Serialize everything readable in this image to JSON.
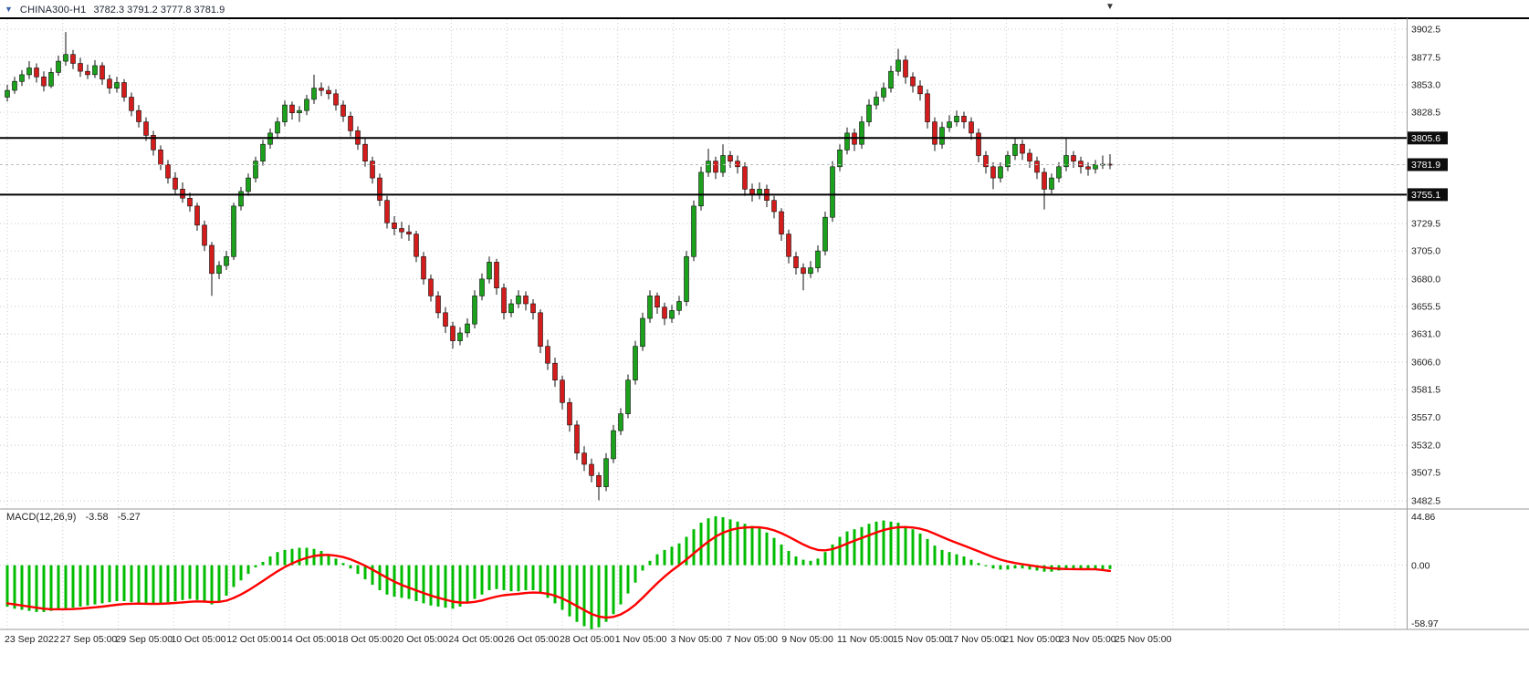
{
  "header": {
    "symbol": "CHINA300-H1",
    "ohlc": "3782.3 3791.2 3777.8 3781.9"
  },
  "icons": {
    "one_click_arrow": "▼",
    "shift_marker": "▼"
  },
  "colors": {
    "candle_up": "#1ba11b",
    "candle_down": "#d41c1c",
    "candle_outline": "#101010",
    "wick": "#101010",
    "macd_histogram": "#00bc00",
    "macd_signal": "#ff0000",
    "level_line": "#000000",
    "current_price_line": "#bdbdbd",
    "grid": "#c9c9c9",
    "frame": "#9b9b9b",
    "top_border": "#000000",
    "tag_bg": "#0d0d0d",
    "tag_text": "#ffffff",
    "axis_text": "#1a1a1a"
  },
  "chart_data": [
    {
      "type": "candlestick",
      "title": "CHINA300-H1",
      "x_tick_labels": [
        "23 Sep 2022",
        "27 Sep 05:00",
        "29 Sep 05:00",
        "10 Oct 05:00",
        "12 Oct 05:00",
        "14 Oct 05:00",
        "18 Oct 05:00",
        "20 Oct 05:00",
        "24 Oct 05:00",
        "26 Oct 05:00",
        "28 Oct 05:00",
        "1 Nov 05:00",
        "3 Nov 05:00",
        "7 Nov 05:00",
        "9 Nov 05:00",
        "11 Nov 05:00",
        "15 Nov 05:00",
        "17 Nov 05:00",
        "21 Nov 05:00",
        "23 Nov 05:00",
        "25 Nov 05:00"
      ],
      "ylim": [
        3482.5,
        3902.5
      ],
      "y_tick_labels": [
        "3902.5",
        "3877.5",
        "3853.0",
        "3828.5",
        "3729.5",
        "3705.0",
        "3680.0",
        "3655.5",
        "3631.0",
        "3606.0",
        "3581.5",
        "3557.0",
        "3532.0",
        "3507.5",
        "3482.5"
      ],
      "y_tick_values": [
        3902.5,
        3877.5,
        3853.0,
        3828.5,
        3729.5,
        3705.0,
        3680.0,
        3655.5,
        3631.0,
        3606.0,
        3581.5,
        3557.0,
        3532.0,
        3507.5,
        3482.5
      ],
      "hlines": [
        3805.6,
        3755.1
      ],
      "last_price": 3781.9,
      "price_tags": [
        {
          "label": "3805.6",
          "price": 3805.6
        },
        {
          "label": "3781.9",
          "price": 3781.9
        },
        {
          "label": "3755.1",
          "price": 3755.1
        }
      ],
      "grid": true,
      "candles": [
        [
          3842,
          3853,
          3838,
          3848
        ],
        [
          3848,
          3860,
          3845,
          3856
        ],
        [
          3856,
          3866,
          3852,
          3862
        ],
        [
          3862,
          3874,
          3858,
          3868
        ],
        [
          3868,
          3872,
          3855,
          3860
        ],
        [
          3860,
          3865,
          3847,
          3852
        ],
        [
          3852,
          3868,
          3850,
          3864
        ],
        [
          3864,
          3879,
          3861,
          3874
        ],
        [
          3874,
          3900,
          3870,
          3880
        ],
        [
          3880,
          3884,
          3867,
          3872
        ],
        [
          3872,
          3877,
          3860,
          3865
        ],
        [
          3865,
          3871,
          3858,
          3862
        ],
        [
          3862,
          3875,
          3859,
          3870
        ],
        [
          3870,
          3873,
          3853,
          3858
        ],
        [
          3858,
          3862,
          3845,
          3850
        ],
        [
          3850,
          3860,
          3846,
          3855
        ],
        [
          3855,
          3858,
          3838,
          3842
        ],
        [
          3842,
          3846,
          3825,
          3830
        ],
        [
          3830,
          3835,
          3815,
          3820
        ],
        [
          3820,
          3824,
          3803,
          3808
        ],
        [
          3808,
          3812,
          3790,
          3795
        ],
        [
          3795,
          3799,
          3777,
          3782
        ],
        [
          3782,
          3786,
          3765,
          3770
        ],
        [
          3770,
          3775,
          3755,
          3760
        ],
        [
          3760,
          3766,
          3748,
          3752
        ],
        [
          3752,
          3757,
          3740,
          3745
        ],
        [
          3745,
          3748,
          3723,
          3728
        ],
        [
          3728,
          3732,
          3705,
          3710
        ],
        [
          3710,
          3713,
          3665,
          3685
        ],
        [
          3685,
          3696,
          3680,
          3692
        ],
        [
          3692,
          3705,
          3688,
          3700
        ],
        [
          3700,
          3748,
          3697,
          3745
        ],
        [
          3745,
          3762,
          3741,
          3758
        ],
        [
          3758,
          3774,
          3754,
          3770
        ],
        [
          3770,
          3789,
          3766,
          3785
        ],
        [
          3785,
          3804,
          3781,
          3800
        ],
        [
          3800,
          3814,
          3796,
          3810
        ],
        [
          3810,
          3824,
          3806,
          3820
        ],
        [
          3820,
          3839,
          3816,
          3835
        ],
        [
          3835,
          3838,
          3822,
          3828
        ],
        [
          3828,
          3834,
          3820,
          3830
        ],
        [
          3830,
          3844,
          3826,
          3840
        ],
        [
          3840,
          3862,
          3836,
          3850
        ],
        [
          3850,
          3855,
          3843,
          3848
        ],
        [
          3848,
          3852,
          3840,
          3845
        ],
        [
          3845,
          3849,
          3830,
          3835
        ],
        [
          3835,
          3839,
          3820,
          3825
        ],
        [
          3825,
          3829,
          3807,
          3812
        ],
        [
          3812,
          3816,
          3795,
          3800
        ],
        [
          3800,
          3805,
          3780,
          3785
        ],
        [
          3785,
          3789,
          3765,
          3770
        ],
        [
          3770,
          3774,
          3745,
          3750
        ],
        [
          3750,
          3754,
          3725,
          3730
        ],
        [
          3730,
          3736,
          3719,
          3725
        ],
        [
          3725,
          3731,
          3716,
          3722
        ],
        [
          3722,
          3728,
          3714,
          3720
        ],
        [
          3720,
          3723,
          3695,
          3700
        ],
        [
          3700,
          3704,
          3675,
          3680
        ],
        [
          3680,
          3684,
          3660,
          3665
        ],
        [
          3665,
          3669,
          3645,
          3650
        ],
        [
          3650,
          3655,
          3632,
          3638
        ],
        [
          3638,
          3642,
          3618,
          3625
        ],
        [
          3625,
          3637,
          3621,
          3632
        ],
        [
          3632,
          3645,
          3628,
          3640
        ],
        [
          3640,
          3670,
          3636,
          3665
        ],
        [
          3665,
          3685,
          3661,
          3680
        ],
        [
          3680,
          3700,
          3676,
          3695
        ],
        [
          3695,
          3698,
          3666,
          3672
        ],
        [
          3672,
          3676,
          3644,
          3650
        ],
        [
          3650,
          3662,
          3646,
          3658
        ],
        [
          3658,
          3670,
          3654,
          3665
        ],
        [
          3665,
          3669,
          3652,
          3658
        ],
        [
          3658,
          3662,
          3644,
          3650
        ],
        [
          3650,
          3653,
          3614,
          3620
        ],
        [
          3620,
          3626,
          3599,
          3605
        ],
        [
          3605,
          3610,
          3584,
          3590
        ],
        [
          3590,
          3594,
          3564,
          3570
        ],
        [
          3570,
          3574,
          3544,
          3550
        ],
        [
          3550,
          3554,
          3519,
          3525
        ],
        [
          3525,
          3531,
          3509,
          3515
        ],
        [
          3515,
          3520,
          3499,
          3505
        ],
        [
          3505,
          3508,
          3483,
          3495
        ],
        [
          3495,
          3525,
          3491,
          3520
        ],
        [
          3520,
          3550,
          3516,
          3545
        ],
        [
          3545,
          3565,
          3541,
          3560
        ],
        [
          3560,
          3595,
          3556,
          3590
        ],
        [
          3590,
          3625,
          3586,
          3620
        ],
        [
          3620,
          3650,
          3616,
          3645
        ],
        [
          3645,
          3670,
          3641,
          3665
        ],
        [
          3665,
          3668,
          3649,
          3655
        ],
        [
          3655,
          3659,
          3639,
          3645
        ],
        [
          3645,
          3657,
          3641,
          3652
        ],
        [
          3652,
          3665,
          3648,
          3660
        ],
        [
          3660,
          3705,
          3656,
          3700
        ],
        [
          3700,
          3750,
          3696,
          3745
        ],
        [
          3745,
          3780,
          3741,
          3775
        ],
        [
          3775,
          3796,
          3771,
          3785
        ],
        [
          3785,
          3789,
          3769,
          3775
        ],
        [
          3775,
          3800,
          3771,
          3790
        ],
        [
          3790,
          3794,
          3779,
          3785
        ],
        [
          3785,
          3790,
          3774,
          3780
        ],
        [
          3780,
          3784,
          3754,
          3760
        ],
        [
          3760,
          3765,
          3749,
          3755
        ],
        [
          3755,
          3766,
          3751,
          3760
        ],
        [
          3760,
          3764,
          3744,
          3750
        ],
        [
          3750,
          3754,
          3734,
          3740
        ],
        [
          3740,
          3743,
          3714,
          3720
        ],
        [
          3720,
          3724,
          3694,
          3700
        ],
        [
          3700,
          3704,
          3684,
          3690
        ],
        [
          3690,
          3694,
          3670,
          3685
        ],
        [
          3685,
          3696,
          3681,
          3690
        ],
        [
          3690,
          3710,
          3686,
          3705
        ],
        [
          3705,
          3740,
          3701,
          3735
        ],
        [
          3735,
          3785,
          3731,
          3780
        ],
        [
          3780,
          3800,
          3776,
          3795
        ],
        [
          3795,
          3815,
          3791,
          3810
        ],
        [
          3810,
          3814,
          3794,
          3800
        ],
        [
          3800,
          3825,
          3796,
          3820
        ],
        [
          3820,
          3840,
          3816,
          3835
        ],
        [
          3835,
          3847,
          3831,
          3842
        ],
        [
          3842,
          3855,
          3838,
          3850
        ],
        [
          3850,
          3870,
          3846,
          3865
        ],
        [
          3865,
          3885,
          3861,
          3875
        ],
        [
          3875,
          3879,
          3854,
          3860
        ],
        [
          3860,
          3864,
          3846,
          3852
        ],
        [
          3852,
          3857,
          3839,
          3845
        ],
        [
          3845,
          3849,
          3814,
          3820
        ],
        [
          3820,
          3824,
          3794,
          3800
        ],
        [
          3800,
          3820,
          3796,
          3815
        ],
        [
          3815,
          3826,
          3811,
          3820
        ],
        [
          3820,
          3830,
          3816,
          3825
        ],
        [
          3825,
          3829,
          3814,
          3820
        ],
        [
          3820,
          3824,
          3804,
          3810
        ],
        [
          3810,
          3814,
          3784,
          3790
        ],
        [
          3790,
          3794,
          3774,
          3780
        ],
        [
          3780,
          3784,
          3760,
          3770
        ],
        [
          3770,
          3784,
          3766,
          3780
        ],
        [
          3780,
          3794,
          3776,
          3790
        ],
        [
          3790,
          3806,
          3786,
          3800
        ],
        [
          3800,
          3804,
          3786,
          3792
        ],
        [
          3792,
          3796,
          3779,
          3785
        ],
        [
          3785,
          3789,
          3769,
          3775
        ],
        [
          3775,
          3779,
          3742,
          3760
        ],
        [
          3760,
          3774,
          3756,
          3770
        ],
        [
          3770,
          3784,
          3766,
          3780
        ],
        [
          3780,
          3806,
          3776,
          3790
        ],
        [
          3790,
          3794,
          3779,
          3785
        ],
        [
          3785,
          3789,
          3774,
          3780
        ],
        [
          3780,
          3784,
          3772,
          3778
        ],
        [
          3778,
          3786,
          3774,
          3782
        ],
        [
          3782,
          3790,
          3778,
          3782.3
        ],
        [
          3782.3,
          3791.2,
          3777.8,
          3781.9
        ]
      ]
    },
    {
      "type": "macd",
      "label": "MACD(12,26,9)",
      "main_value_text": "-3.58",
      "signal_value_text": "-5.27",
      "ylim": [
        -58.97,
        44.86
      ],
      "y_tick_labels": [
        "44.86",
        "0.00",
        "-58.97"
      ],
      "y_tick_values": [
        44.86,
        0,
        -58.97
      ],
      "histogram": [
        -38,
        -40,
        -41,
        -42,
        -43,
        -43,
        -42,
        -41,
        -40,
        -39,
        -38,
        -37,
        -36,
        -35,
        -34,
        -33,
        -33,
        -34,
        -35,
        -36,
        -36,
        -35,
        -34,
        -33,
        -32,
        -31,
        -32,
        -34,
        -36,
        -33,
        -28,
        -20,
        -14,
        -8,
        -2,
        3,
        8,
        12,
        14,
        15,
        16,
        16,
        15,
        13,
        10,
        6,
        2,
        -3,
        -8,
        -13,
        -18,
        -23,
        -27,
        -29,
        -30,
        -31,
        -33,
        -35,
        -37,
        -38,
        -39,
        -40,
        -38,
        -35,
        -31,
        -27,
        -23,
        -22,
        -23,
        -24,
        -24,
        -23,
        -23,
        -26,
        -30,
        -35,
        -41,
        -47,
        -52,
        -56,
        -58.97,
        -57,
        -52,
        -45,
        -36,
        -26,
        -16,
        -5,
        4,
        10,
        14,
        17,
        20,
        26,
        33,
        39,
        43,
        44.86,
        44,
        42,
        40,
        38,
        36,
        34,
        30,
        25,
        19,
        13,
        8,
        5,
        4,
        6,
        12,
        19,
        26,
        31,
        33,
        35,
        38,
        40,
        41,
        40,
        39,
        36,
        33,
        29,
        24,
        18,
        14,
        12,
        10,
        8,
        5,
        2,
        -1,
        -3,
        -4,
        -4,
        -3,
        -3,
        -4,
        -5,
        -6,
        -6,
        -5,
        -4,
        -4,
        -4,
        -4,
        -4,
        -3.8,
        -3.58
      ],
      "signal": [
        -35,
        -36,
        -37,
        -38,
        -39,
        -40,
        -40.5,
        -40.5,
        -40.5,
        -40.3,
        -39.9,
        -39.3,
        -38.7,
        -38,
        -37.2,
        -36.4,
        -35.7,
        -35.4,
        -35.3,
        -35.4,
        -35.5,
        -35.4,
        -35.1,
        -34.7,
        -34.2,
        -33.6,
        -33.3,
        -33.4,
        -33.9,
        -33.7,
        -32.6,
        -30.1,
        -26.9,
        -23.1,
        -18.9,
        -14.5,
        -10,
        -5.6,
        -1.7,
        1.6,
        4.5,
        6.8,
        8.4,
        9.3,
        9.4,
        8.7,
        7.4,
        5.3,
        2.6,
        -0.5,
        -4,
        -7.8,
        -11.6,
        -15.1,
        -18.1,
        -20.7,
        -23.2,
        -25.6,
        -27.9,
        -29.9,
        -31.7,
        -33.4,
        -34.3,
        -34.4,
        -33.7,
        -32.4,
        -30.5,
        -28.8,
        -27.6,
        -26.9,
        -26.3,
        -25.6,
        -25.1,
        -25.3,
        -26.2,
        -28,
        -30.6,
        -33.9,
        -37.5,
        -41.2,
        -44.8,
        -47.2,
        -48.2,
        -47.5,
        -45.2,
        -41.4,
        -36.3,
        -30,
        -23.2,
        -16.6,
        -10.5,
        -5,
        0,
        5.2,
        10.8,
        16.4,
        21.7,
        26.3,
        29.8,
        32.2,
        33.8,
        34.6,
        34.9,
        34.7,
        33.8,
        32,
        29.4,
        26.1,
        22.5,
        19,
        16,
        14,
        13.6,
        14.7,
        17,
        19.8,
        22.4,
        24.9,
        27.5,
        30,
        32.2,
        33.8,
        34.8,
        35,
        34.6,
        33.5,
        31.6,
        28.9,
        25.9,
        23.1,
        20.5,
        18,
        15.4,
        12.7,
        10,
        7.4,
        5.1,
        3.3,
        2,
        0.9,
        -0.1,
        -1.1,
        -2.1,
        -2.9,
        -3.3,
        -3.5,
        -3.6,
        -3.7,
        -3.7,
        -3.8,
        -4.5,
        -5.27
      ]
    }
  ]
}
